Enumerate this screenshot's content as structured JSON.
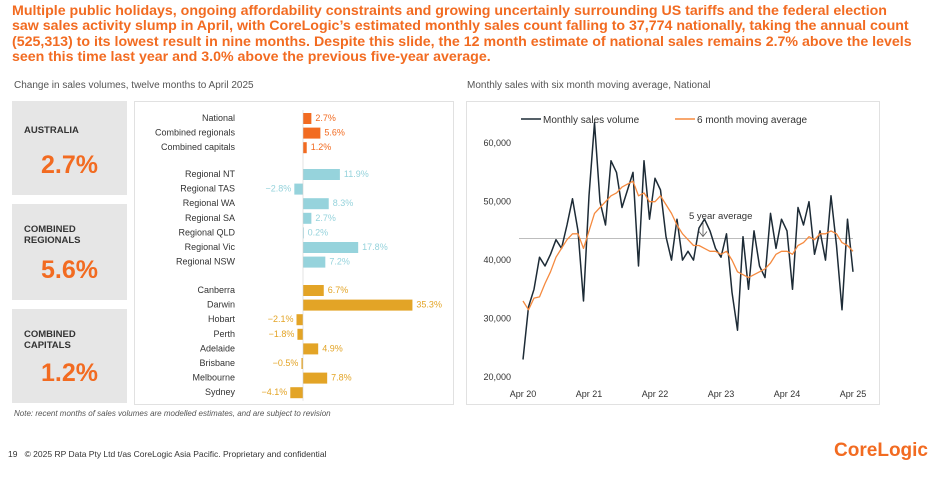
{
  "headline": "Multiple public holidays, ongoing affordability constraints and growing uncertainly surrounding US tariffs and the federal election saw sales activity slump in April, with CoreLogic’s estimated monthly sales count falling to 37,774 nationally, taking the annual count (525,313) to its lowest result in nine months. Despite this slide, the 12 month estimate of national sales remains 2.7% above the levels seen this time last year and 3.0% above the previous five-year average.",
  "kpis": [
    {
      "label": "AUSTRALIA",
      "value": "2.7%"
    },
    {
      "label": "COMBINED\nREGIONALS",
      "value": "5.6%"
    },
    {
      "label": "COMBINED\nCAPITALS",
      "value": "1.2%"
    }
  ],
  "colors": {
    "accent": "#f26b21",
    "regional": "#96d3dc",
    "capital": "#e3a426",
    "line_monthly": "#1d2b36",
    "line_average": "#f58a3f",
    "reference": "#bdbdbd"
  },
  "chart_data": [
    {
      "type": "bar",
      "orientation": "horizontal",
      "title": "Change in sales volumes, twelve months to April 2025",
      "groups": [
        {
          "color": "#f26b21",
          "categories": [
            "National",
            "Combined regionals",
            "Combined capitals"
          ],
          "values": [
            2.7,
            5.6,
            1.2
          ],
          "labels": [
            "2.7%",
            "5.6%",
            "1.2%"
          ]
        },
        {
          "color": "#96d3dc",
          "categories": [
            "Regional NT",
            "Regional TAS",
            "Regional WA",
            "Regional SA",
            "Regional QLD",
            "Regional Vic",
            "Regional NSW"
          ],
          "values": [
            11.9,
            -2.8,
            8.3,
            2.7,
            0.2,
            17.8,
            7.2
          ],
          "labels": [
            "11.9%",
            "−2.8%",
            "8.3%",
            "2.7%",
            "0.2%",
            "17.8%",
            "7.2%"
          ]
        },
        {
          "color": "#e3a426",
          "categories": [
            "Canberra",
            "Darwin",
            "Hobart",
            "Perth",
            "Adelaide",
            "Brisbane",
            "Melbourne",
            "Sydney"
          ],
          "values": [
            6.7,
            35.3,
            -2.1,
            -1.8,
            4.9,
            -0.5,
            7.8,
            -4.1
          ],
          "labels": [
            "6.7%",
            "35.3%",
            "−2.1%",
            "−1.8%",
            "4.9%",
            "−0.5%",
            "7.8%",
            "−4.1%"
          ]
        }
      ]
    },
    {
      "type": "line",
      "title": "Monthly sales with six month moving average, National",
      "x_ticks": [
        "Apr 20",
        "Apr 21",
        "Apr 22",
        "Apr 23",
        "Apr 24",
        "Apr 25"
      ],
      "y_ticks": [
        "20,000",
        "30,000",
        "40,000",
        "50,000",
        "60,000"
      ],
      "ylim": [
        20000,
        65000
      ],
      "x_start": "2020-04",
      "x_end": "2025-04",
      "reference": {
        "label": "5 year average",
        "value": 43700
      },
      "series": [
        {
          "name": "Monthly sales volume",
          "values": [
            23000,
            32000,
            35000,
            40500,
            39000,
            41000,
            43500,
            42000,
            46000,
            50500,
            45000,
            33000,
            51000,
            63500,
            50000,
            46000,
            57000,
            55000,
            49000,
            52000,
            55000,
            39000,
            57000,
            47000,
            54000,
            52000,
            44000,
            40000,
            47000,
            40000,
            41500,
            40000,
            45500,
            47000,
            45000,
            42000,
            40500,
            44500,
            34500,
            28000,
            44000,
            35000,
            45000,
            39000,
            37000,
            48000,
            42000,
            47000,
            45000,
            35000,
            49000,
            46000,
            50000,
            41000,
            45000,
            40000,
            51000,
            42500,
            31500,
            47000,
            38000
          ]
        },
        {
          "name": "6 month moving average",
          "values": [
            33000,
            31500,
            33500,
            33700,
            36000,
            38000,
            40500,
            42000,
            43500,
            44500,
            44500,
            42000,
            45000,
            48000,
            49000,
            50000,
            51000,
            51500,
            52500,
            53000,
            53500,
            51000,
            51500,
            50000,
            50000,
            51000,
            49500,
            48000,
            46000,
            44500,
            43500,
            42500,
            42500,
            42000,
            41500,
            41500,
            41000,
            41500,
            40000,
            38000,
            37500,
            37000,
            37500,
            38000,
            38500,
            39500,
            41000,
            41500,
            41500,
            41000,
            42500,
            43000,
            44000,
            43500,
            44500,
            44500,
            45000,
            44500,
            43000,
            42500,
            41500
          ]
        }
      ]
    }
  ],
  "note": "Note: recent months of sales volumes are modelled estimates, and are subject to revision",
  "footer": {
    "page": "19",
    "copyright": "© 2025 RP Data Pty Ltd t/as CoreLogic Asia Pacific. Proprietary and confidential"
  },
  "logo": "CoreLogic"
}
